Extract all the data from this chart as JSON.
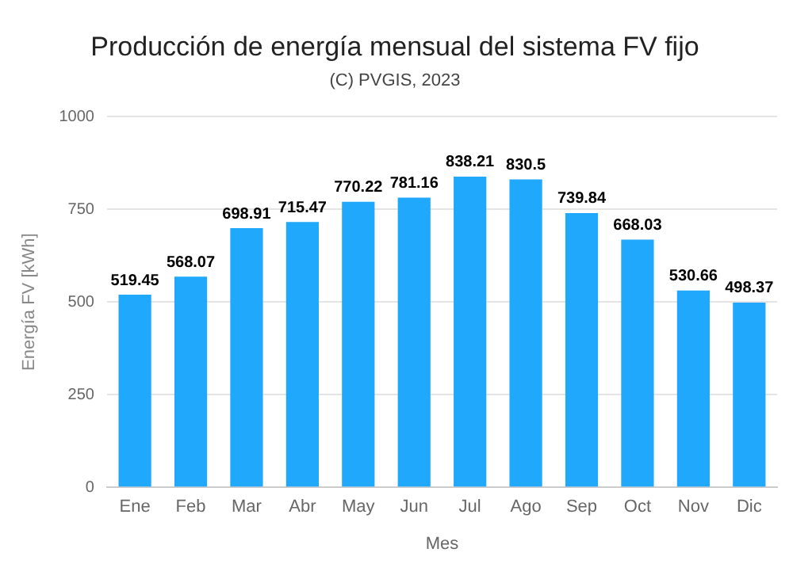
{
  "chart_data": {
    "type": "bar",
    "title": "Producción de energía mensual del sistema FV fijo",
    "subtitle": "(C) PVGIS, 2023",
    "xlabel": "Mes",
    "ylabel": "Energía FV [kWh]",
    "categories": [
      "Ene",
      "Feb",
      "Mar",
      "Abr",
      "May",
      "Jun",
      "Jul",
      "Ago",
      "Sep",
      "Oct",
      "Nov",
      "Dic"
    ],
    "values": [
      519.45,
      568.07,
      698.91,
      715.47,
      770.22,
      781.16,
      838.21,
      830.5,
      739.84,
      668.03,
      530.66,
      498.37
    ],
    "color": "#1fa8fc",
    "ylim": [
      0,
      1000
    ],
    "yticks": [
      0,
      250,
      500,
      750,
      1000
    ],
    "grid": "y",
    "data_labels": true,
    "legend": false
  }
}
